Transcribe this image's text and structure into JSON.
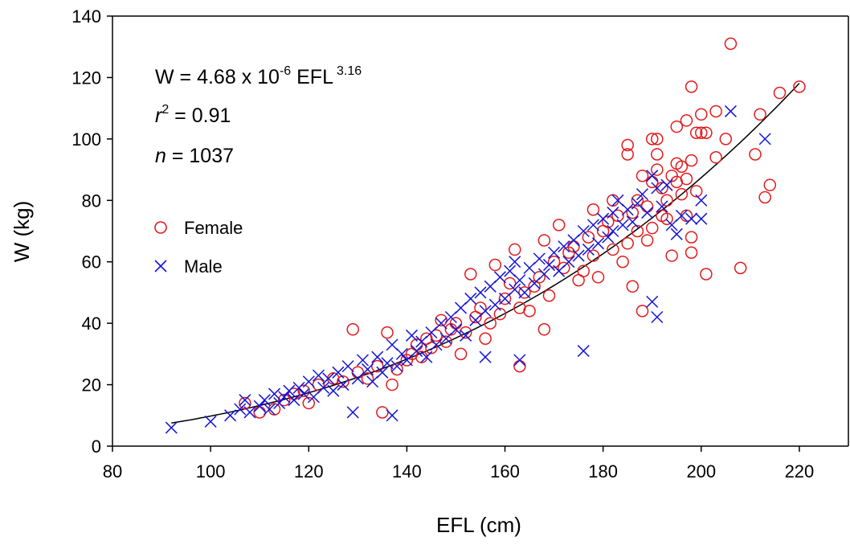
{
  "chart_data": {
    "type": "scatter",
    "title": "",
    "xlabel": "EFL (cm)",
    "ylabel": "W (kg)",
    "xlim": [
      80,
      230
    ],
    "ylim": [
      0,
      140
    ],
    "x_ticks": [
      80,
      100,
      120,
      140,
      160,
      180,
      200,
      220
    ],
    "y_ticks": [
      0,
      20,
      40,
      60,
      80,
      100,
      120,
      140
    ],
    "grid": false,
    "legend_position": "left",
    "annotations": {
      "equation_prefix": "W = 4.68 x 10",
      "equation_exp": "-6",
      "equation_mid": " EFL",
      "equation_power": "3.16",
      "r_var": "r",
      "r_sup": "2",
      "r_value": " = 0.91",
      "n_var": "n",
      "n_value": " = 1037"
    },
    "fit": {
      "type": "power",
      "a": 4.68e-06,
      "b": 3.16,
      "x_range": [
        92,
        220
      ],
      "color": "#000000"
    },
    "series": [
      {
        "name": "Female",
        "marker": "open-circle",
        "color": "#e31a1c",
        "points": [
          [
            107,
            14
          ],
          [
            110,
            11
          ],
          [
            113,
            12
          ],
          [
            115,
            15
          ],
          [
            117,
            17
          ],
          [
            119,
            18
          ],
          [
            120,
            14
          ],
          [
            122,
            20
          ],
          [
            125,
            22
          ],
          [
            127,
            21
          ],
          [
            129,
            38
          ],
          [
            130,
            24
          ],
          [
            132,
            22
          ],
          [
            134,
            26
          ],
          [
            135,
            11
          ],
          [
            136,
            37
          ],
          [
            137,
            20
          ],
          [
            138,
            25
          ],
          [
            140,
            28
          ],
          [
            141,
            30
          ],
          [
            142,
            33
          ],
          [
            143,
            29
          ],
          [
            144,
            35
          ],
          [
            145,
            32
          ],
          [
            146,
            36
          ],
          [
            147,
            41
          ],
          [
            148,
            34
          ],
          [
            149,
            38
          ],
          [
            150,
            40
          ],
          [
            151,
            30
          ],
          [
            152,
            37
          ],
          [
            153,
            56
          ],
          [
            154,
            42
          ],
          [
            155,
            45
          ],
          [
            156,
            35
          ],
          [
            157,
            40
          ],
          [
            158,
            59
          ],
          [
            159,
            43
          ],
          [
            160,
            48
          ],
          [
            161,
            53
          ],
          [
            162,
            64
          ],
          [
            163,
            26
          ],
          [
            163,
            45
          ],
          [
            164,
            50
          ],
          [
            165,
            44
          ],
          [
            166,
            52
          ],
          [
            167,
            55
          ],
          [
            168,
            67
          ],
          [
            168,
            38
          ],
          [
            169,
            49
          ],
          [
            170,
            60
          ],
          [
            171,
            72
          ],
          [
            172,
            58
          ],
          [
            173,
            63
          ],
          [
            174,
            65
          ],
          [
            175,
            54
          ],
          [
            176,
            57
          ],
          [
            177,
            68
          ],
          [
            178,
            77
          ],
          [
            178,
            62
          ],
          [
            179,
            55
          ],
          [
            180,
            70
          ],
          [
            181,
            73
          ],
          [
            182,
            80
          ],
          [
            182,
            64
          ],
          [
            183,
            75
          ],
          [
            184,
            60
          ],
          [
            185,
            98
          ],
          [
            185,
            95
          ],
          [
            185,
            66
          ],
          [
            186,
            52
          ],
          [
            186,
            76
          ],
          [
            187,
            80
          ],
          [
            187,
            70
          ],
          [
            188,
            88
          ],
          [
            188,
            44
          ],
          [
            189,
            78
          ],
          [
            189,
            67
          ],
          [
            190,
            100
          ],
          [
            190,
            86
          ],
          [
            190,
            71
          ],
          [
            191,
            95
          ],
          [
            191,
            100
          ],
          [
            191,
            90
          ],
          [
            192,
            75
          ],
          [
            192,
            84
          ],
          [
            193,
            74
          ],
          [
            193,
            80
          ],
          [
            194,
            62
          ],
          [
            194,
            88
          ],
          [
            195,
            104
          ],
          [
            195,
            86
          ],
          [
            195,
            92
          ],
          [
            196,
            91
          ],
          [
            196,
            82
          ],
          [
            197,
            75
          ],
          [
            197,
            87
          ],
          [
            197,
            106
          ],
          [
            198,
            117
          ],
          [
            198,
            93
          ],
          [
            198,
            68
          ],
          [
            198,
            63
          ],
          [
            199,
            102
          ],
          [
            199,
            83
          ],
          [
            200,
            102
          ],
          [
            200,
            108
          ],
          [
            201,
            102
          ],
          [
            201,
            56
          ],
          [
            203,
            109
          ],
          [
            203,
            94
          ],
          [
            205,
            100
          ],
          [
            206,
            131
          ],
          [
            208,
            58
          ],
          [
            211,
            95
          ],
          [
            212,
            108
          ],
          [
            213,
            81
          ],
          [
            214,
            85
          ],
          [
            216,
            115
          ],
          [
            220,
            117
          ]
        ]
      },
      {
        "name": "Male",
        "marker": "x",
        "color": "#1515d6",
        "points": [
          [
            92,
            6
          ],
          [
            100,
            8
          ],
          [
            104,
            10
          ],
          [
            106,
            12
          ],
          [
            107,
            15
          ],
          [
            108,
            11
          ],
          [
            110,
            13
          ],
          [
            111,
            15
          ],
          [
            112,
            12
          ],
          [
            113,
            17
          ],
          [
            114,
            14
          ],
          [
            115,
            16
          ],
          [
            116,
            18
          ],
          [
            117,
            15
          ],
          [
            118,
            19
          ],
          [
            119,
            17
          ],
          [
            120,
            21
          ],
          [
            121,
            16
          ],
          [
            122,
            23
          ],
          [
            123,
            19
          ],
          [
            124,
            22
          ],
          [
            125,
            18
          ],
          [
            126,
            24
          ],
          [
            127,
            20
          ],
          [
            128,
            26
          ],
          [
            129,
            11
          ],
          [
            130,
            22
          ],
          [
            131,
            28
          ],
          [
            132,
            25
          ],
          [
            133,
            21
          ],
          [
            134,
            29
          ],
          [
            135,
            24
          ],
          [
            136,
            27
          ],
          [
            137,
            10
          ],
          [
            137,
            33
          ],
          [
            138,
            26
          ],
          [
            139,
            30
          ],
          [
            140,
            28
          ],
          [
            141,
            36
          ],
          [
            142,
            31
          ],
          [
            143,
            34
          ],
          [
            144,
            29
          ],
          [
            145,
            37
          ],
          [
            146,
            33
          ],
          [
            147,
            40
          ],
          [
            148,
            35
          ],
          [
            149,
            42
          ],
          [
            150,
            38
          ],
          [
            151,
            45
          ],
          [
            152,
            36
          ],
          [
            153,
            48
          ],
          [
            154,
            41
          ],
          [
            155,
            50
          ],
          [
            156,
            44
          ],
          [
            156,
            29
          ],
          [
            157,
            52
          ],
          [
            158,
            46
          ],
          [
            159,
            55
          ],
          [
            160,
            48
          ],
          [
            161,
            57
          ],
          [
            162,
            51
          ],
          [
            162,
            60
          ],
          [
            163,
            28
          ],
          [
            163,
            54
          ],
          [
            164,
            50
          ],
          [
            165,
            58
          ],
          [
            166,
            53
          ],
          [
            167,
            61
          ],
          [
            168,
            56
          ],
          [
            169,
            59
          ],
          [
            170,
            63
          ],
          [
            171,
            57
          ],
          [
            172,
            65
          ],
          [
            173,
            60
          ],
          [
            174,
            67
          ],
          [
            175,
            62
          ],
          [
            176,
            31
          ],
          [
            176,
            70
          ],
          [
            177,
            64
          ],
          [
            178,
            72
          ],
          [
            179,
            66
          ],
          [
            180,
            74
          ],
          [
            181,
            68
          ],
          [
            182,
            76
          ],
          [
            182,
            70
          ],
          [
            183,
            80
          ],
          [
            184,
            72
          ],
          [
            185,
            77
          ],
          [
            186,
            73
          ],
          [
            187,
            79
          ],
          [
            188,
            82
          ],
          [
            189,
            76
          ],
          [
            190,
            88
          ],
          [
            190,
            47
          ],
          [
            191,
            42
          ],
          [
            191,
            84
          ],
          [
            192,
            78
          ],
          [
            193,
            85
          ],
          [
            194,
            72
          ],
          [
            195,
            69
          ],
          [
            196,
            75
          ],
          [
            198,
            74
          ],
          [
            200,
            80
          ],
          [
            200,
            74
          ],
          [
            206,
            109
          ],
          [
            213,
            100
          ]
        ]
      }
    ]
  }
}
